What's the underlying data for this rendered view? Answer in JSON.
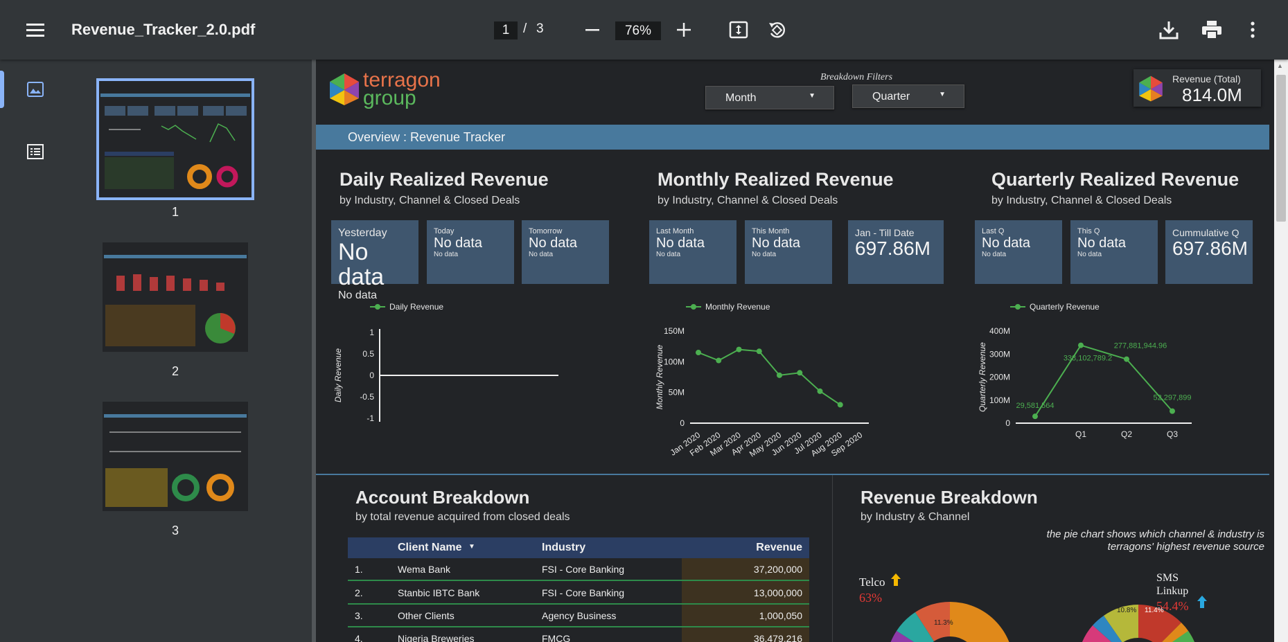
{
  "toolbar": {
    "filename": "Revenue_Tracker_2.0.pdf",
    "current_page": "1",
    "page_separator": "/",
    "total_pages": "3",
    "zoom": "76%"
  },
  "sidebar": {
    "thumbnails": [
      {
        "page": "1",
        "selected": true
      },
      {
        "page": "2",
        "selected": false
      },
      {
        "page": "3",
        "selected": false
      }
    ]
  },
  "report": {
    "logo_line1": "terragon",
    "logo_line2": "group",
    "filters_title": "Breakdown Filters",
    "filter_month": "Month",
    "filter_quarter": "Quarter",
    "revenue_total_label": "Revenue (Total)",
    "revenue_total_value": "814.0M",
    "overview_banner": "Overview : Revenue Tracker",
    "daily": {
      "title": "Daily Realized Revenue",
      "subtitle": "by Industry, Channel & Closed Deals",
      "kpis": [
        {
          "label": "Yesterday",
          "value": "No data",
          "note": "No data"
        },
        {
          "label": "Today",
          "value": "No data",
          "note": "No data"
        },
        {
          "label": "Tomorrow",
          "value": "No data",
          "note": "No data"
        }
      ]
    },
    "monthly": {
      "title": "Monthly Realized Revenue",
      "subtitle": "by Industry, Channel & Closed Deals",
      "kpis": [
        {
          "label": "Last Month",
          "value": "No data",
          "note": "No data"
        },
        {
          "label": "This Month",
          "value": "No data",
          "note": "No data"
        },
        {
          "label": "Jan - Till Date",
          "value": "697.86M",
          "note": ""
        }
      ]
    },
    "quarterly": {
      "title": "Quarterly Realized Revenue",
      "subtitle": "by Industry, Channel & Closed Deals",
      "kpis": [
        {
          "label": "Last Q",
          "value": "No data",
          "note": "No data"
        },
        {
          "label": "This Q",
          "value": "No data",
          "note": "No data"
        },
        {
          "label": "Cummulative Q",
          "value": "697.86M",
          "note": ""
        }
      ]
    },
    "account": {
      "title": "Account Breakdown",
      "subtitle": "by total revenue acquired from closed deals",
      "columns": [
        "Client Name",
        "Industry",
        "Revenue"
      ],
      "rows": [
        {
          "n": "1.",
          "client": "Wema Bank",
          "industry": "FSI - Core Banking",
          "revenue": "37,200,000"
        },
        {
          "n": "2.",
          "client": "Stanbic IBTC Bank",
          "industry": "FSI - Core Banking",
          "revenue": "13,000,000"
        },
        {
          "n": "3.",
          "client": "Other Clients",
          "industry": "Agency Business",
          "revenue": "1,000,050"
        },
        {
          "n": "4.",
          "client": "Nigeria Breweries",
          "industry": "FMCG",
          "revenue": "36,479,216"
        }
      ]
    },
    "revenue_breakdown": {
      "title": "Revenue Breakdown",
      "subtitle": "by Industry & Channel",
      "note_line1": "the pie chart shows which channel & industry is",
      "note_line2": "terragons' highest revenue source",
      "telco_label": "Telco",
      "telco_pct": "63%",
      "sms_label_1": "SMS",
      "sms_label_2": "Linkup",
      "sms_pct": "54.4%",
      "donut1_slice_label": "11.3%",
      "donut2_slice_labels": [
        "10.8%",
        "11.4%"
      ]
    }
  },
  "chart_data": [
    {
      "type": "line",
      "legend": "Daily Revenue",
      "ylabel": "Daily Revenue",
      "yticks": [
        "1",
        "0.5",
        "0",
        "-0.5",
        "-1"
      ],
      "ylim": [
        -1,
        1
      ],
      "x": [],
      "values": [],
      "color": "#4caf50"
    },
    {
      "type": "line",
      "legend": "Monthly Revenue",
      "ylabel": "Monthly Revenue",
      "yticks": [
        "150M",
        "100M",
        "50M",
        "0"
      ],
      "ylim": [
        0,
        150000000
      ],
      "categories": [
        "Jan 2020",
        "Feb 2020",
        "Mar 2020",
        "Apr 2020",
        "May 2020",
        "Jun 2020",
        "Jul 2020",
        "Aug 2020",
        "Sep 2020"
      ],
      "values": [
        115000000,
        102000000,
        120000000,
        117000000,
        78000000,
        82000000,
        52000000,
        30000000,
        null
      ],
      "color": "#4caf50"
    },
    {
      "type": "line",
      "legend": "Quarterly Revenue",
      "ylabel": "Quarterly Revenue",
      "yticks": [
        "400M",
        "300M",
        "200M",
        "100M",
        "0"
      ],
      "ylim": [
        0,
        400000000
      ],
      "categories": [
        "",
        "Q1",
        "Q2",
        "Q3"
      ],
      "values": [
        29581564,
        338102789.2,
        277881944.96,
        52297899
      ],
      "data_labels": [
        "29,581,564",
        "338,102,789.2",
        "277,881,944.96",
        "52,297,899"
      ],
      "color": "#4caf50"
    }
  ],
  "colors": {
    "banner": "#48799d",
    "kpi_bg": "#3f566e",
    "line": "#4caf50",
    "table_header": "#2b3e63",
    "accent_blue": "#8ab4f8"
  }
}
